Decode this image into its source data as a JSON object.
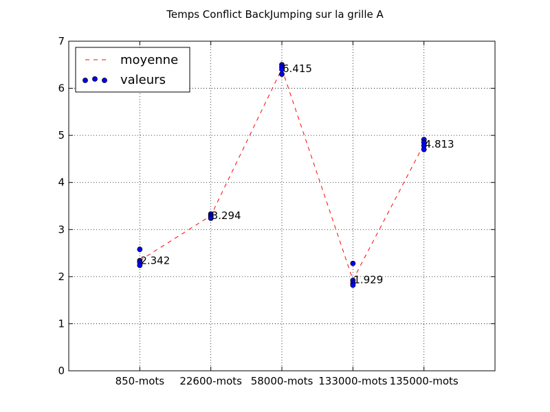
{
  "chart_data": {
    "type": "line",
    "title": "Temps Conflict BackJumping sur la grille A",
    "xlabel": "",
    "ylabel": "",
    "categories": [
      "850-mots",
      "22600-mots",
      "58000-mots",
      "133000-mots",
      "135000-mots"
    ],
    "ylim": [
      0,
      7
    ],
    "yticks": [
      0,
      1,
      2,
      3,
      4,
      5,
      6,
      7
    ],
    "grid": true,
    "legend_position": "top-left",
    "series": [
      {
        "name": "moyenne",
        "kind": "line",
        "style": "dashed",
        "color": "#ff0000",
        "values": [
          2.342,
          3.294,
          6.415,
          1.929,
          4.813
        ],
        "labels": [
          "2.342",
          "3.294",
          "6.415",
          "1.929",
          "4.813"
        ]
      },
      {
        "name": "valeurs",
        "kind": "scatter",
        "color": "#0000ff",
        "points": [
          [
            0,
            2.58
          ],
          [
            0,
            2.34
          ],
          [
            0,
            2.3
          ],
          [
            0,
            2.24
          ],
          [
            1,
            3.33
          ],
          [
            1,
            3.3
          ],
          [
            1,
            3.27
          ],
          [
            1,
            3.24
          ],
          [
            2,
            6.5
          ],
          [
            2,
            6.45
          ],
          [
            2,
            6.4
          ],
          [
            2,
            6.3
          ],
          [
            3,
            2.28
          ],
          [
            3,
            1.92
          ],
          [
            3,
            1.86
          ],
          [
            3,
            1.82
          ],
          [
            4,
            4.91
          ],
          [
            4,
            4.85
          ],
          [
            4,
            4.78
          ],
          [
            4,
            4.7
          ]
        ]
      }
    ]
  }
}
